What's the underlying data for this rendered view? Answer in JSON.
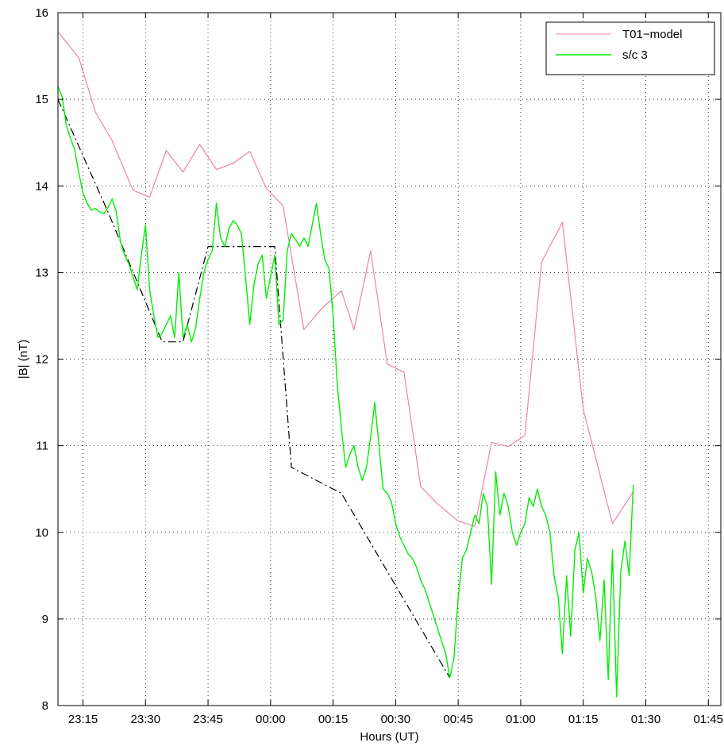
{
  "chart_data": {
    "type": "line",
    "title": "",
    "xlabel": "Hours (UT)",
    "ylabel": "|B| (nT)",
    "xlim": [
      "23:09",
      "01:48"
    ],
    "ylim": [
      8,
      16
    ],
    "grid": true,
    "legend_position": "top-right",
    "x_ticks": [
      "23:15",
      "23:30",
      "23:45",
      "00:00",
      "00:15",
      "00:30",
      "00:45",
      "01:00",
      "01:15",
      "01:30",
      "01:45"
    ],
    "y_ticks": [
      8,
      9,
      10,
      11,
      12,
      13,
      14,
      15,
      16
    ],
    "colors": {
      "model": "#ee82ab",
      "sc3": "#00ee00",
      "fit": "#000000"
    },
    "series": [
      {
        "name": "T01−model",
        "points": [
          [
            "23:09",
            15.78
          ],
          [
            "23:14",
            15.48
          ],
          [
            "23:18",
            14.85
          ],
          [
            "23:22",
            14.52
          ],
          [
            "23:27",
            13.95
          ],
          [
            "23:31",
            13.87
          ],
          [
            "23:35",
            14.41
          ],
          [
            "23:39",
            14.16
          ],
          [
            "23:43",
            14.48
          ],
          [
            "23:47",
            14.19
          ],
          [
            "23:51",
            14.26
          ],
          [
            "23:55",
            14.4
          ],
          [
            "23:59",
            13.97
          ],
          [
            "00:03",
            13.77
          ],
          [
            "00:08",
            12.34
          ],
          [
            "00:12",
            12.57
          ],
          [
            "00:17",
            12.79
          ],
          [
            "00:20",
            12.34
          ],
          [
            "00:24",
            13.25
          ],
          [
            "00:28",
            11.94
          ],
          [
            "00:32",
            11.85
          ],
          [
            "00:36",
            10.53
          ],
          [
            "00:40",
            10.33
          ],
          [
            "00:45",
            10.13
          ],
          [
            "00:49",
            10.07
          ],
          [
            "00:53",
            11.04
          ],
          [
            "00:57",
            10.99
          ],
          [
            "01:01",
            11.12
          ],
          [
            "01:05",
            13.12
          ],
          [
            "01:10",
            13.58
          ],
          [
            "01:15",
            11.42
          ],
          [
            "01:22",
            10.1
          ],
          [
            "01:27",
            10.47
          ]
        ]
      },
      {
        "name": "s/c 3",
        "points": [
          [
            "23:09",
            15.15
          ],
          [
            "23:10",
            15.03
          ],
          [
            "23:11",
            14.7
          ],
          [
            "23:12",
            14.55
          ],
          [
            "23:13",
            14.42
          ],
          [
            "23:14",
            14.15
          ],
          [
            "23:15",
            13.92
          ],
          [
            "23:16",
            13.8
          ],
          [
            "23:17",
            13.72
          ],
          [
            "23:18",
            13.74
          ],
          [
            "23:19",
            13.7
          ],
          [
            "23:20",
            13.68
          ],
          [
            "23:21",
            13.75
          ],
          [
            "23:22",
            13.85
          ],
          [
            "23:23",
            13.7
          ],
          [
            "23:24",
            13.35
          ],
          [
            "23:25",
            13.2
          ],
          [
            "23:26",
            13.1
          ],
          [
            "23:27",
            12.95
          ],
          [
            "23:28",
            12.8
          ],
          [
            "23:29",
            13.2
          ],
          [
            "23:30",
            13.55
          ],
          [
            "23:31",
            12.8
          ],
          [
            "23:32",
            12.5
          ],
          [
            "23:33",
            12.25
          ],
          [
            "23:34",
            12.3
          ],
          [
            "23:35",
            12.4
          ],
          [
            "23:36",
            12.5
          ],
          [
            "23:37",
            12.25
          ],
          [
            "23:38",
            13.0
          ],
          [
            "23:39",
            12.25
          ],
          [
            "23:40",
            12.4
          ],
          [
            "23:41",
            12.2
          ],
          [
            "23:42",
            12.35
          ],
          [
            "23:43",
            12.7
          ],
          [
            "23:44",
            13.0
          ],
          [
            "23:45",
            13.15
          ],
          [
            "23:46",
            13.25
          ],
          [
            "23:47",
            13.8
          ],
          [
            "23:48",
            13.4
          ],
          [
            "23:49",
            13.3
          ],
          [
            "23:50",
            13.5
          ],
          [
            "23:51",
            13.6
          ],
          [
            "23:52",
            13.55
          ],
          [
            "23:53",
            13.45
          ],
          [
            "23:54",
            12.95
          ],
          [
            "23:55",
            12.4
          ],
          [
            "23:56",
            12.85
          ],
          [
            "23:57",
            13.1
          ],
          [
            "23:58",
            13.2
          ],
          [
            "23:59",
            12.7
          ],
          [
            "00:00",
            12.95
          ],
          [
            "00:01",
            13.2
          ],
          [
            "00:02",
            12.4
          ],
          [
            "00:03",
            12.45
          ],
          [
            "00:04",
            13.25
          ],
          [
            "00:05",
            13.45
          ],
          [
            "00:06",
            13.38
          ],
          [
            "00:07",
            13.3
          ],
          [
            "00:08",
            13.4
          ],
          [
            "00:09",
            13.3
          ],
          [
            "00:10",
            13.55
          ],
          [
            "00:11",
            13.8
          ],
          [
            "00:12",
            13.45
          ],
          [
            "00:13",
            13.15
          ],
          [
            "00:14",
            13.05
          ],
          [
            "00:15",
            12.5
          ],
          [
            "00:16",
            11.7
          ],
          [
            "00:17",
            11.2
          ],
          [
            "00:18",
            10.75
          ],
          [
            "00:19",
            10.9
          ],
          [
            "00:20",
            11.0
          ],
          [
            "00:21",
            10.75
          ],
          [
            "00:22",
            10.6
          ],
          [
            "00:23",
            10.75
          ],
          [
            "00:24",
            11.1
          ],
          [
            "00:25",
            11.5
          ],
          [
            "00:26",
            11.0
          ],
          [
            "00:27",
            10.5
          ],
          [
            "00:28",
            10.45
          ],
          [
            "00:29",
            10.35
          ],
          [
            "00:30",
            10.1
          ],
          [
            "00:31",
            9.95
          ],
          [
            "00:32",
            9.85
          ],
          [
            "00:33",
            9.75
          ],
          [
            "00:34",
            9.7
          ],
          [
            "00:35",
            9.6
          ],
          [
            "00:36",
            9.45
          ],
          [
            "00:37",
            9.35
          ],
          [
            "00:38",
            9.2
          ],
          [
            "00:39",
            9.05
          ],
          [
            "00:40",
            8.9
          ],
          [
            "00:41",
            8.75
          ],
          [
            "00:42",
            8.6
          ],
          [
            "00:43",
            8.32
          ],
          [
            "00:44",
            8.55
          ],
          [
            "00:45",
            9.25
          ],
          [
            "00:46",
            9.7
          ],
          [
            "00:47",
            9.8
          ],
          [
            "00:48",
            10.0
          ],
          [
            "00:49",
            10.2
          ],
          [
            "00:50",
            10.1
          ],
          [
            "00:51",
            10.45
          ],
          [
            "00:52",
            10.3
          ],
          [
            "00:53",
            9.4
          ],
          [
            "00:54",
            10.7
          ],
          [
            "00:55",
            10.2
          ],
          [
            "00:56",
            10.45
          ],
          [
            "00:57",
            10.3
          ],
          [
            "00:58",
            10.0
          ],
          [
            "00:59",
            9.85
          ],
          [
            "01:00",
            10.0
          ],
          [
            "01:01",
            10.1
          ],
          [
            "01:02",
            10.4
          ],
          [
            "01:03",
            10.3
          ],
          [
            "01:04",
            10.5
          ],
          [
            "01:05",
            10.3
          ],
          [
            "01:06",
            10.2
          ],
          [
            "01:07",
            10.0
          ],
          [
            "01:08",
            9.5
          ],
          [
            "01:09",
            9.25
          ],
          [
            "01:10",
            8.6
          ],
          [
            "01:11",
            9.5
          ],
          [
            "01:12",
            8.8
          ],
          [
            "01:13",
            9.8
          ],
          [
            "01:14",
            10.0
          ],
          [
            "01:15",
            9.3
          ],
          [
            "01:16",
            9.7
          ],
          [
            "01:17",
            9.55
          ],
          [
            "01:18",
            9.25
          ],
          [
            "01:19",
            8.75
          ],
          [
            "01:20",
            9.45
          ],
          [
            "01:21",
            8.3
          ],
          [
            "01:22",
            9.8
          ],
          [
            "01:23",
            8.1
          ],
          [
            "01:24",
            9.55
          ],
          [
            "01:25",
            9.9
          ],
          [
            "01:26",
            9.5
          ],
          [
            "01:27",
            10.55
          ]
        ]
      },
      {
        "name": "",
        "points": [
          [
            "23:09",
            15.0
          ],
          [
            "23:21",
            13.7
          ],
          [
            "23:34",
            12.2
          ],
          [
            "23:39",
            12.2
          ],
          [
            "23:45",
            13.3
          ],
          [
            "00:01",
            13.3
          ],
          [
            "00:05",
            10.75
          ],
          [
            "00:17",
            10.45
          ],
          [
            "00:43",
            8.32
          ]
        ]
      }
    ]
  }
}
